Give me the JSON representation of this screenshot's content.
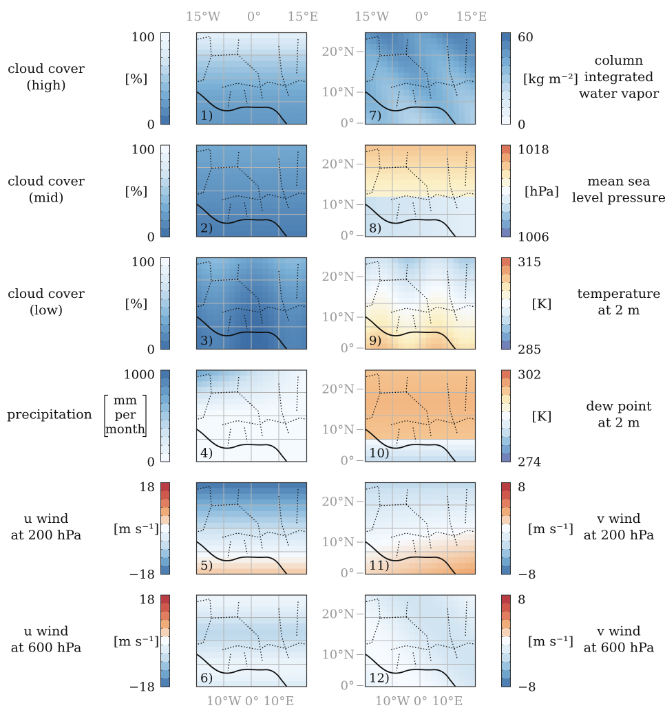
{
  "figure": {
    "top_lon_labels": [
      "15°W",
      "0°",
      "15°E"
    ],
    "bottom_lon_labels": [
      "10°W",
      "0°",
      "10°E"
    ],
    "lat_labels": [
      "0°",
      "10°N",
      "20°N"
    ]
  },
  "colors": {
    "blue_dark": "#3d6ea6",
    "blue_mid": "#7ab0d6",
    "blue_light": "#cfe3f1",
    "white": "#f7fbff",
    "pale_yellow": "#fbefc2",
    "orange": "#f1b27c",
    "red": "#d6614f",
    "dark_red": "#b03040",
    "purple": "#6f6fb0",
    "grid": "#b5b5b5",
    "frame": "#333333"
  },
  "chart_data": [
    {
      "type": "heatmap",
      "panel": "1)",
      "title": "cloud cover\n(high)",
      "unit": "[%]",
      "ticks": [
        "100",
        "0"
      ],
      "vmin": 0,
      "vmax": 100,
      "colormap": "blues_reversed"
    },
    {
      "type": "heatmap",
      "panel": "2)",
      "title": "cloud cover\n(mid)",
      "unit": "[%]",
      "ticks": [
        "100",
        "0"
      ],
      "vmin": 0,
      "vmax": 100,
      "colormap": "blues_reversed"
    },
    {
      "type": "heatmap",
      "panel": "3)",
      "title": "cloud cover\n(low)",
      "unit": "[%]",
      "ticks": [
        "100",
        "0"
      ],
      "vmin": 0,
      "vmax": 100,
      "colormap": "blues_reversed"
    },
    {
      "type": "heatmap",
      "panel": "4)",
      "title": "precipitation",
      "unit": "mm\nper\nmonth",
      "ticks": [
        "1000",
        "0"
      ],
      "vmin": 0,
      "vmax": 1000,
      "colormap": "blues"
    },
    {
      "type": "heatmap",
      "panel": "5)",
      "title": "u wind\nat 200 hPa",
      "unit": "[m s⁻¹]",
      "ticks": [
        "18",
        "−18"
      ],
      "vmin": -18,
      "vmax": 18,
      "colormap": "red_blue"
    },
    {
      "type": "heatmap",
      "panel": "6)",
      "title": "u wind\nat 600 hPa",
      "unit": "[m s⁻¹]",
      "ticks": [
        "18",
        "−18"
      ],
      "vmin": -18,
      "vmax": 18,
      "colormap": "red_blue"
    },
    {
      "type": "heatmap",
      "panel": "7)",
      "title": "column\nintegrated\nwater vapor",
      "unit": "[kg m⁻²]",
      "ticks": [
        "60",
        "0"
      ],
      "vmin": 0,
      "vmax": 60,
      "colormap": "blues"
    },
    {
      "type": "heatmap",
      "panel": "8)",
      "title": "mean sea\nlevel pressure",
      "unit": "[hPa]",
      "ticks": [
        "1018",
        "1006"
      ],
      "vmin": 1006,
      "vmax": 1018,
      "colormap": "spectral"
    },
    {
      "type": "heatmap",
      "panel": "9)",
      "title": "temperature\nat 2 m",
      "unit": "[K]",
      "ticks": [
        "315",
        "285"
      ],
      "vmin": 285,
      "vmax": 315,
      "colormap": "spectral"
    },
    {
      "type": "heatmap",
      "panel": "10)",
      "title": "dew point\nat 2 m",
      "unit": "[K]",
      "ticks": [
        "302",
        "274"
      ],
      "vmin": 274,
      "vmax": 302,
      "colormap": "spectral"
    },
    {
      "type": "heatmap",
      "panel": "11)",
      "title": "v wind\nat 200 hPa",
      "unit": "[m s⁻¹]",
      "ticks": [
        "8",
        "−8"
      ],
      "vmin": -8,
      "vmax": 8,
      "colormap": "red_blue"
    },
    {
      "type": "heatmap",
      "panel": "12)",
      "title": "v wind\nat 600 hPa",
      "unit": "[m s⁻¹]",
      "ticks": [
        "8",
        "−8"
      ],
      "vmin": -8,
      "vmax": 8,
      "colormap": "red_blue"
    }
  ]
}
